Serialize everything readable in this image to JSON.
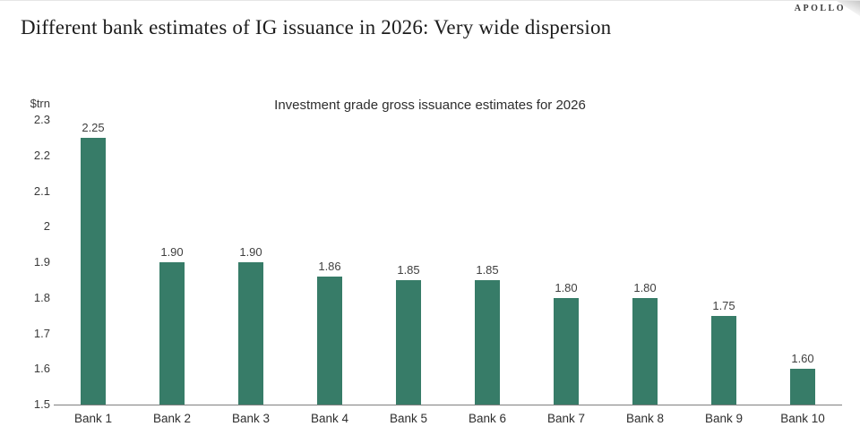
{
  "header": {
    "title": "Different bank estimates of IG issuance in 2026: Very wide dispersion",
    "brand": "APOLLO"
  },
  "chart_data": {
    "type": "bar",
    "title": "Investment grade gross issuance estimates for 2026",
    "xlabel": "",
    "ylabel": "$trn",
    "categories": [
      "Bank 1",
      "Bank 2",
      "Bank 3",
      "Bank 4",
      "Bank 5",
      "Bank 6",
      "Bank 7",
      "Bank 8",
      "Bank 9",
      "Bank 10"
    ],
    "values": [
      2.25,
      1.9,
      1.9,
      1.86,
      1.85,
      1.85,
      1.8,
      1.8,
      1.75,
      1.6
    ],
    "data_labels": [
      "2.25",
      "1.90",
      "1.90",
      "1.86",
      "1.85",
      "1.85",
      "1.80",
      "1.80",
      "1.75",
      "1.60"
    ],
    "ylim": [
      1.5,
      2.3
    ],
    "yticks": [
      "2.3",
      "2.2",
      "2.1",
      "2",
      "1.9",
      "1.8",
      "1.7",
      "1.6",
      "1.5"
    ],
    "bar_color": "#377C68",
    "axis_color": "#7f7f7f",
    "grid": false,
    "legend_position": "none"
  }
}
